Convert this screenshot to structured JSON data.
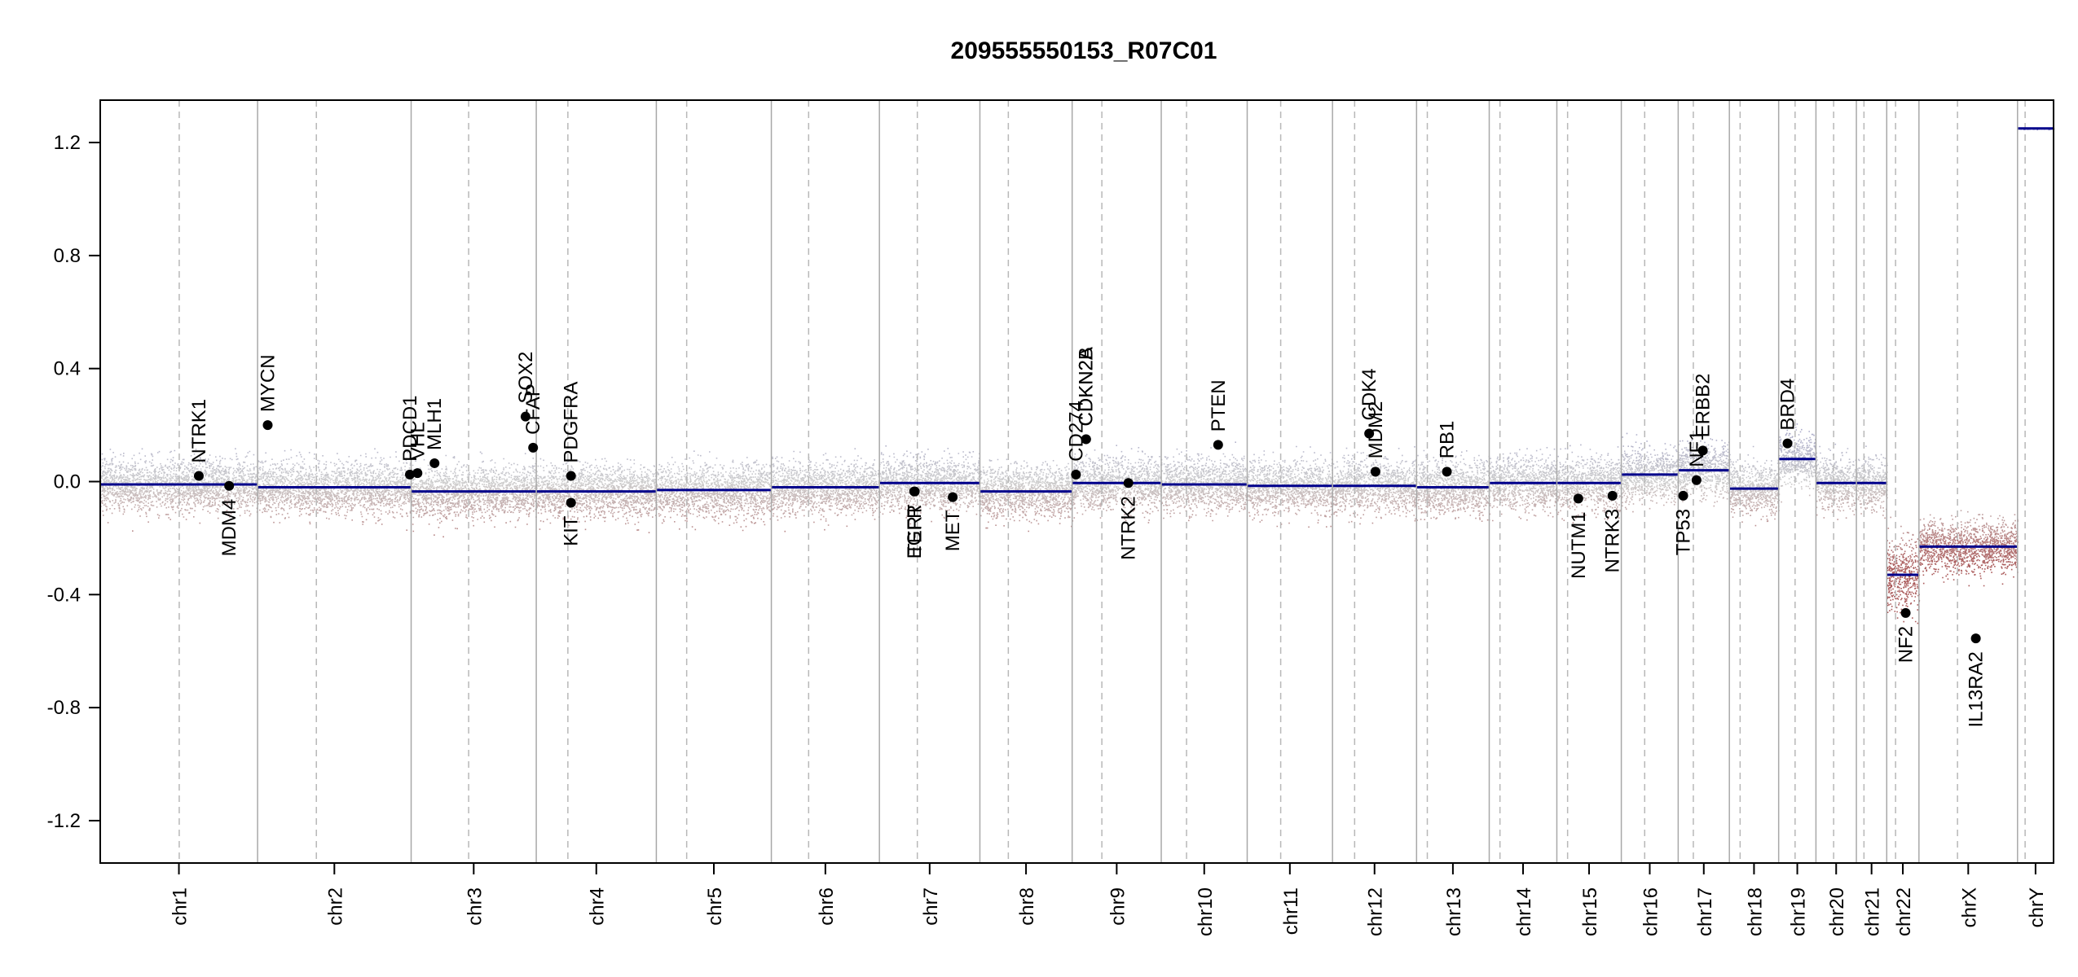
{
  "chart_data": {
    "type": "scatter",
    "title": "209555550153_R07C01",
    "xlabel": "",
    "ylabel": "",
    "ylim": [
      -1.35,
      1.35
    ],
    "yticks": [
      1.2,
      0.8,
      0.4,
      0.0,
      -0.4,
      -0.8,
      -1.2
    ],
    "ytick_labels": [
      "1.2",
      "0.8",
      "0.4",
      "0.0",
      "-0.4",
      "-0.8",
      "-1.2"
    ],
    "grid": "vertical lines at chromosome boundaries (solid) and centromeres (dashed)",
    "colors": {
      "gain": "#9a9ac8",
      "neutral": "#c8c8c8",
      "loss": "#b07070",
      "segment": "#00008b",
      "gene": "#000000"
    },
    "chromosomes": [
      {
        "name": "chr1",
        "start": 0,
        "end": 249,
        "cen": 125,
        "segment": -0.01
      },
      {
        "name": "chr2",
        "start": 249,
        "end": 492,
        "cen": 342,
        "segment": -0.02
      },
      {
        "name": "chr3",
        "start": 492,
        "end": 690,
        "cen": 583,
        "segment": -0.035
      },
      {
        "name": "chr4",
        "start": 690,
        "end": 880,
        "cen": 740,
        "segment": -0.035
      },
      {
        "name": "chr5",
        "start": 880,
        "end": 1062,
        "cen": 928,
        "segment": -0.03
      },
      {
        "name": "chr6",
        "start": 1062,
        "end": 1233,
        "cen": 1121,
        "segment": -0.02
      },
      {
        "name": "chr7",
        "start": 1233,
        "end": 1392,
        "cen": 1293,
        "segment": -0.005
      },
      {
        "name": "chr8",
        "start": 1392,
        "end": 1538,
        "cen": 1437,
        "segment": -0.035
      },
      {
        "name": "chr9",
        "start": 1538,
        "end": 1679,
        "cen": 1585,
        "segment": -0.005
      },
      {
        "name": "chr10",
        "start": 1679,
        "end": 1815,
        "cen": 1719,
        "segment": -0.01
      },
      {
        "name": "chr11",
        "start": 1815,
        "end": 1950,
        "cen": 1868,
        "segment": -0.015
      },
      {
        "name": "chr12",
        "start": 1950,
        "end": 2083,
        "cen": 1985,
        "segment": -0.015
      },
      {
        "name": "chr13",
        "start": 2083,
        "end": 2198,
        "cen": 2100,
        "segment": -0.02
      },
      {
        "name": "chr14",
        "start": 2198,
        "end": 2305,
        "cen": 2215,
        "segment": -0.005
      },
      {
        "name": "chr15",
        "start": 2305,
        "end": 2407,
        "cen": 2322,
        "segment": -0.005
      },
      {
        "name": "chr16",
        "start": 2407,
        "end": 2497,
        "cen": 2444,
        "segment": 0.025
      },
      {
        "name": "chr17",
        "start": 2497,
        "end": 2578,
        "cen": 2521,
        "segment": 0.04
      },
      {
        "name": "chr18",
        "start": 2578,
        "end": 2656,
        "cen": 2595,
        "segment": -0.025
      },
      {
        "name": "chr19",
        "start": 2656,
        "end": 2715,
        "cen": 2682,
        "segment": 0.08
      },
      {
        "name": "chr20",
        "start": 2715,
        "end": 2779,
        "cen": 2743,
        "segment": -0.005
      },
      {
        "name": "chr21",
        "start": 2779,
        "end": 2827,
        "cen": 2791,
        "segment": -0.005
      },
      {
        "name": "chr22",
        "start": 2827,
        "end": 2878,
        "cen": 2841,
        "segment": -0.33
      },
      {
        "name": "chrX",
        "start": 2878,
        "end": 3034,
        "cen": 2939,
        "segment": -0.23
      },
      {
        "name": "chrY",
        "start": 3034,
        "end": 3091,
        "cen": 3046,
        "segment": 1.25
      }
    ],
    "genes": [
      {
        "name": "NTRK1",
        "x": 156,
        "y": 0.02,
        "side": "up"
      },
      {
        "name": "MDM4",
        "x": 204,
        "y": -0.015,
        "side": "down"
      },
      {
        "name": "MYCN",
        "x": 265,
        "y": 0.2,
        "side": "up"
      },
      {
        "name": "PDCD1",
        "x": 490,
        "y": 0.025,
        "side": "up"
      },
      {
        "name": "VHL",
        "x": 502,
        "y": 0.03,
        "side": "up"
      },
      {
        "name": "MLH1",
        "x": 529,
        "y": 0.065,
        "side": "up"
      },
      {
        "name": "SOX2",
        "x": 673,
        "y": 0.23,
        "side": "up"
      },
      {
        "name": "CFAP",
        "x": 685,
        "y": 0.12,
        "side": "up"
      },
      {
        "name": "PDGFRA",
        "x": 745,
        "y": 0.02,
        "side": "up"
      },
      {
        "name": "KIT",
        "x": 745,
        "y": -0.075,
        "side": "down"
      },
      {
        "name": "EGFR",
        "x": 1288,
        "y": -0.035,
        "side": "down"
      },
      {
        "name": "TERT",
        "x": 1289,
        "y": -0.035,
        "side": "down"
      },
      {
        "name": "MET",
        "x": 1349,
        "y": -0.055,
        "side": "down"
      },
      {
        "name": "CD274",
        "x": 1544,
        "y": 0.025,
        "side": "up"
      },
      {
        "name": "CDKN2A",
        "x": 1560,
        "y": 0.15,
        "side": "up"
      },
      {
        "name": "CDKN2B",
        "x": 1560,
        "y": 0.15,
        "side": "up"
      },
      {
        "name": "NTRK2",
        "x": 1627,
        "y": -0.005,
        "side": "down"
      },
      {
        "name": "PTEN",
        "x": 1769,
        "y": 0.13,
        "side": "up"
      },
      {
        "name": "CDK4",
        "x": 2008,
        "y": 0.17,
        "side": "up"
      },
      {
        "name": "MDM2",
        "x": 2018,
        "y": 0.035,
        "side": "up"
      },
      {
        "name": "RB1",
        "x": 2131,
        "y": 0.035,
        "side": "up"
      },
      {
        "name": "NUTM1",
        "x": 2339,
        "y": -0.06,
        "side": "down"
      },
      {
        "name": "NTRK3",
        "x": 2393,
        "y": -0.05,
        "side": "down"
      },
      {
        "name": "TP53",
        "x": 2505,
        "y": -0.05,
        "side": "down"
      },
      {
        "name": "NF1",
        "x": 2526,
        "y": 0.005,
        "side": "up"
      },
      {
        "name": "ERBB2",
        "x": 2536,
        "y": 0.11,
        "side": "up"
      },
      {
        "name": "BRD4",
        "x": 2670,
        "y": 0.135,
        "side": "up"
      },
      {
        "name": "NF2",
        "x": 2857,
        "y": -0.465,
        "side": "down"
      },
      {
        "name": "IL13RA2",
        "x": 2968,
        "y": -0.555,
        "side": "down"
      }
    ]
  }
}
